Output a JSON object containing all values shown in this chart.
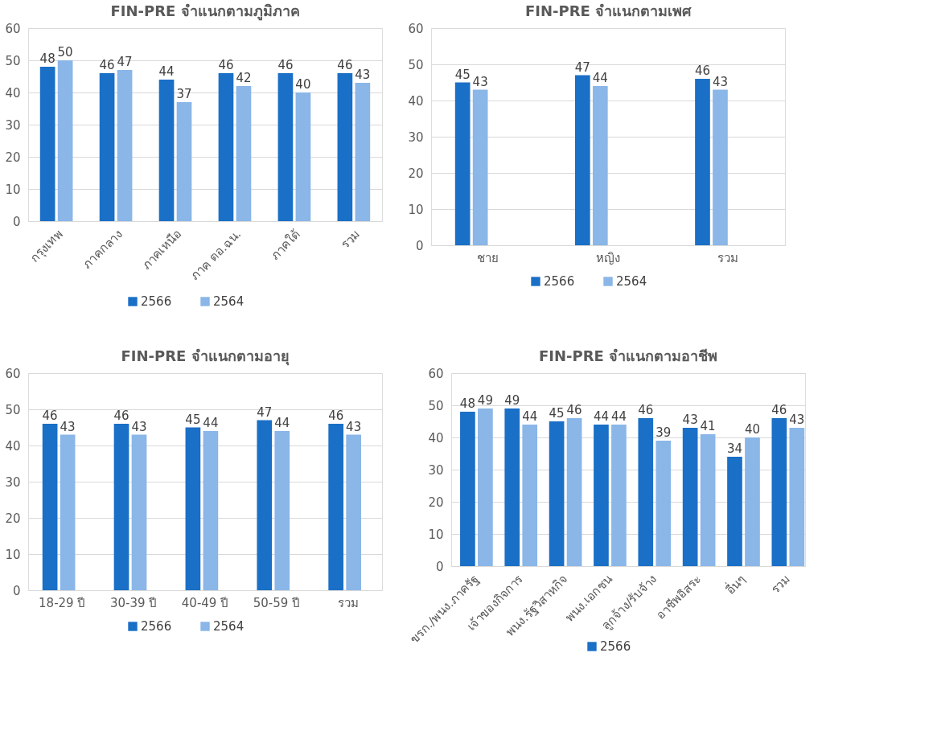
{
  "chart_data": [
    {
      "type": "bar",
      "title": "FIN-PRE จำแนกตามภูมิภาค",
      "categories": [
        "กรุงเทพ",
        "ภาคกลาง",
        "ภาคเหนือ",
        "ภาค ตอ.ฉน.",
        "ภาคใต้",
        "รวม"
      ],
      "series": [
        {
          "name": "2566",
          "color": "#1a6fc6",
          "values": [
            48,
            46,
            44,
            46,
            46,
            46
          ]
        },
        {
          "name": "2564",
          "color": "#8ab6e8",
          "values": [
            50,
            47,
            37,
            42,
            40,
            43
          ]
        }
      ],
      "ylim": [
        0,
        60
      ],
      "yticks": [
        0,
        10,
        20,
        30,
        40,
        50,
        60
      ],
      "grid": "y",
      "legend": "bottom",
      "data_labels": true
    },
    {
      "type": "bar",
      "title": "FIN-PRE จำแนกตามเพศ",
      "categories": [
        "ชาย",
        "หญิง",
        "รวม"
      ],
      "series": [
        {
          "name": "2566",
          "color": "#1a6fc6",
          "values": [
            45,
            47,
            46
          ]
        },
        {
          "name": "2564",
          "color": "#8ab6e8",
          "values": [
            43,
            44,
            43
          ]
        }
      ],
      "ylim": [
        0,
        60
      ],
      "yticks": [
        0,
        10,
        20,
        30,
        40,
        50,
        60
      ],
      "grid": "y",
      "legend": "bottom",
      "data_labels": true
    },
    {
      "type": "bar",
      "title": "FIN-PRE จำแนกตามอายุ",
      "categories": [
        "18-29 ปี",
        "30-39 ปี",
        "40-49 ปี",
        "50-59 ปี",
        "รวม"
      ],
      "series": [
        {
          "name": "2566",
          "color": "#1a6fc6",
          "values": [
            46,
            46,
            45,
            47,
            46
          ]
        },
        {
          "name": "2564",
          "color": "#8ab6e8",
          "values": [
            43,
            43,
            44,
            44,
            43
          ]
        }
      ],
      "ylim": [
        0,
        60
      ],
      "yticks": [
        0,
        10,
        20,
        30,
        40,
        50,
        60
      ],
      "grid": "y",
      "legend": "bottom",
      "data_labels": true
    },
    {
      "type": "bar",
      "title": "FIN-PRE จำแนกตามอาชีพ",
      "categories": [
        "ขรก./พนง.ภาครัฐ",
        "เจ้าของกิจการ",
        "พนง.รัฐวิสาหกิจ",
        "พนง.เอกชน",
        "ลูกจ้าง/รับจ้าง",
        "อาชีพอิสระ",
        "อื่นๆ",
        "รวม"
      ],
      "series": [
        {
          "name": "2566",
          "color": "#1a6fc6",
          "values": [
            48,
            49,
            45,
            44,
            46,
            43,
            34,
            46
          ]
        },
        {
          "color": "#8ab6e8",
          "values": [
            49,
            44,
            46,
            44,
            39,
            41,
            40,
            43
          ]
        }
      ],
      "ylim": [
        0,
        60
      ],
      "yticks": [
        0,
        10,
        20,
        30,
        40,
        50,
        60
      ],
      "grid": "y",
      "legend": "bottom",
      "data_labels": true
    }
  ]
}
